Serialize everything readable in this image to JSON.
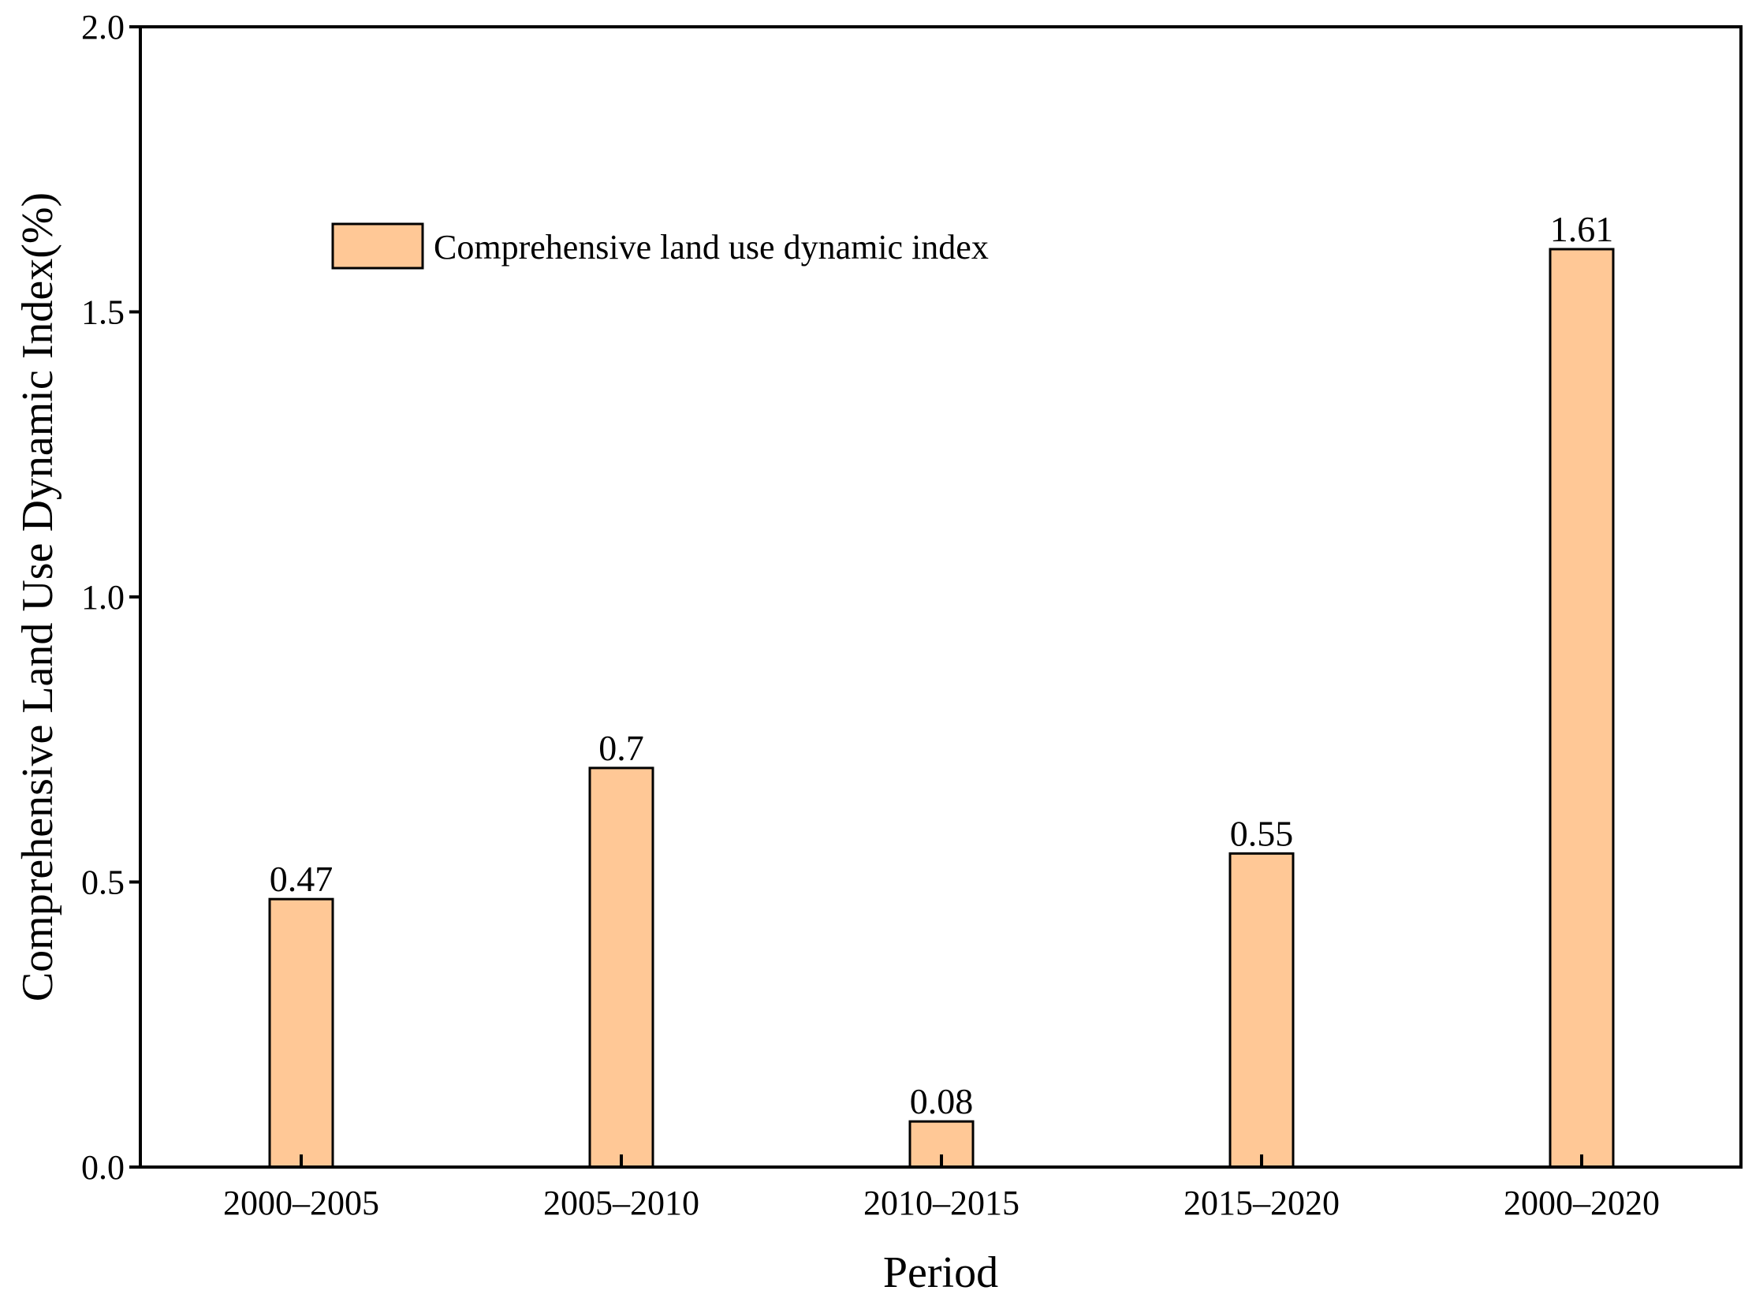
{
  "chart_data": {
    "type": "bar",
    "title": "",
    "xlabel": "Period",
    "ylabel": "Comprehensive Land Use Dynamic Index(%)",
    "categories": [
      "2000–2005",
      "2005–2010",
      "2010–2015",
      "2015–2020",
      "2000–2020"
    ],
    "series": [
      {
        "name": "Comprehensive land use dynamic index",
        "values": [
          0.47,
          0.7,
          0.08,
          0.55,
          1.61
        ],
        "labels": [
          "0.47",
          "0.7",
          "0.08",
          "0.55",
          "1.61"
        ],
        "color": "#FFC896"
      }
    ],
    "ylim": [
      0,
      2.0
    ],
    "yticks": [
      0.0,
      0.5,
      1.0,
      1.5,
      2.0
    ],
    "ytick_labels": [
      "0.0",
      "0.5",
      "1.0",
      "1.5",
      "2.0"
    ],
    "grid": false,
    "legend_position": "top-left"
  }
}
